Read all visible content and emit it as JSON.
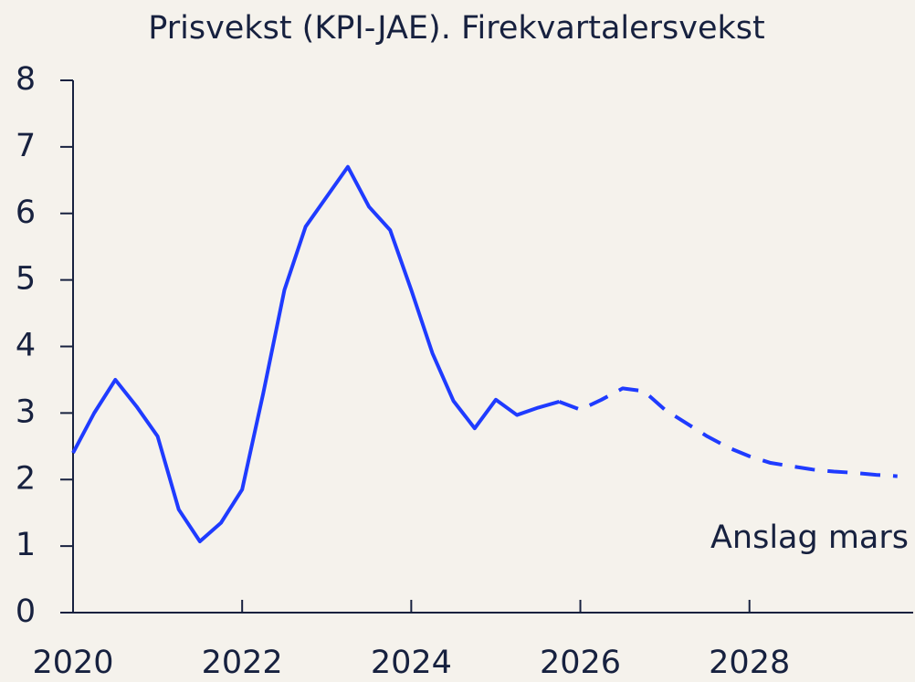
{
  "chart_data": {
    "type": "line",
    "title": "Prisvekst (KPI-JAE). Firekvartalersvekst",
    "x": [
      2020,
      2020.25,
      2020.5,
      2020.75,
      2021,
      2021.25,
      2021.5,
      2021.75,
      2022,
      2022.25,
      2022.5,
      2022.75,
      2023,
      2023.25,
      2023.5,
      2023.75,
      2024,
      2024.25,
      2024.5,
      2024.75,
      2025,
      2025.25,
      2025.5,
      2025.75,
      2026,
      2026.25,
      2026.5,
      2026.75,
      2027,
      2027.25,
      2027.5,
      2027.75,
      2028,
      2028.25,
      2028.5,
      2028.75,
      2029,
      2029.25,
      2029.5,
      2029.75
    ],
    "series": [
      {
        "color": "#1f3bff",
        "dashed": false,
        "values": [
          2.4,
          3.0,
          3.5,
          3.1,
          2.65,
          1.55,
          1.07,
          1.35,
          1.85,
          3.3,
          4.85,
          5.8,
          6.25,
          6.7,
          6.1,
          5.75,
          4.85,
          3.9,
          3.18,
          2.77,
          3.2,
          2.97,
          3.08,
          3.17,
          null,
          null,
          null,
          null,
          null,
          null,
          null,
          null,
          null,
          null,
          null,
          null,
          null,
          null,
          null,
          null
        ]
      },
      {
        "color": "#1f3bff",
        "dashed": true,
        "values": [
          null,
          null,
          null,
          null,
          null,
          null,
          null,
          null,
          null,
          null,
          null,
          null,
          null,
          null,
          null,
          null,
          null,
          null,
          null,
          null,
          null,
          null,
          null,
          3.17,
          3.05,
          3.2,
          3.37,
          3.33,
          3.05,
          2.85,
          2.65,
          2.48,
          2.35,
          2.25,
          2.2,
          2.15,
          2.12,
          2.1,
          2.07,
          2.05
        ]
      }
    ],
    "annotation": "Anslag mars",
    "xlim": [
      2020,
      2029.85
    ],
    "xticks": [
      2020,
      2022,
      2024,
      2026,
      2028
    ],
    "ylim": [
      0,
      8
    ],
    "yticks": [
      0,
      1,
      2,
      3,
      4,
      5,
      6,
      7,
      8
    ],
    "grid": false
  }
}
